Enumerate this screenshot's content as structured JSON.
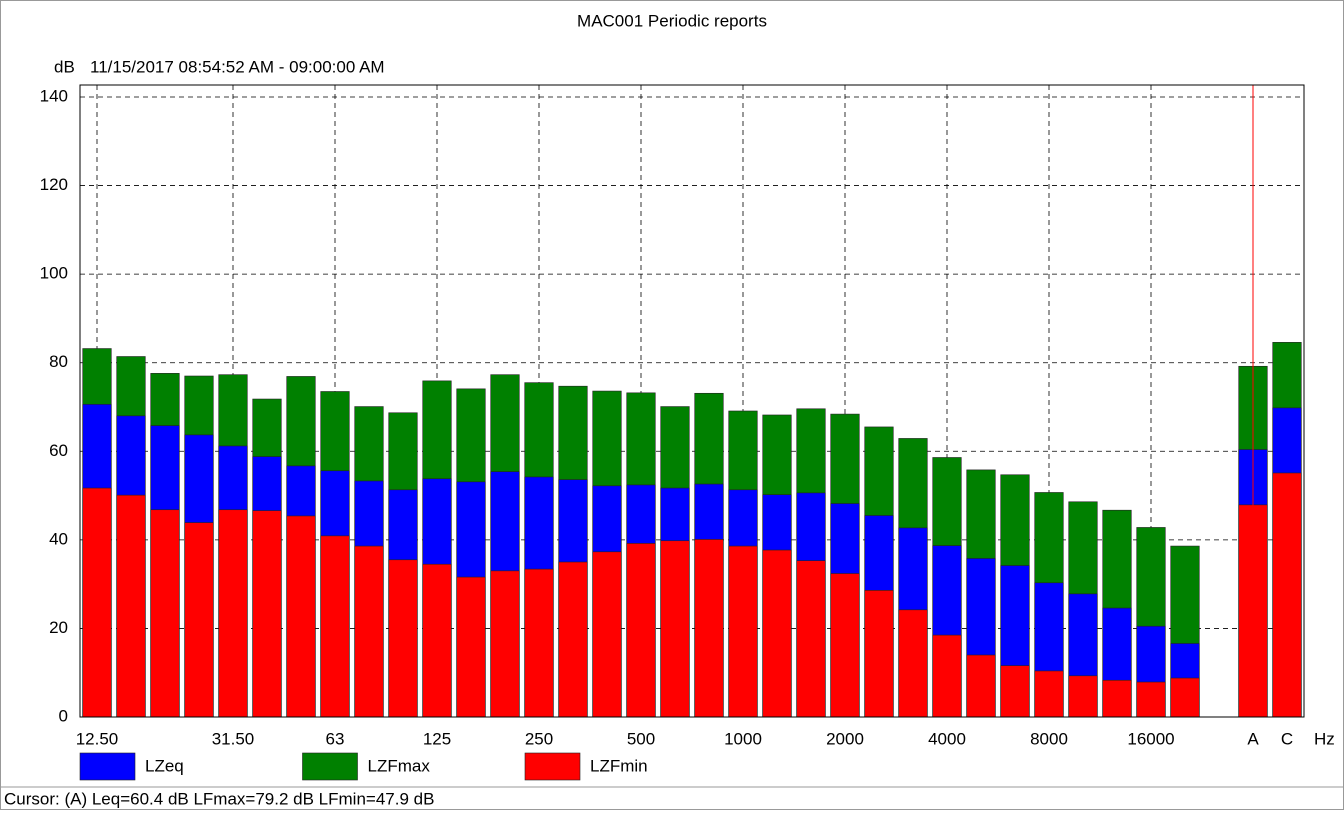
{
  "chart_data": {
    "type": "bar",
    "title": "MAC001 Periodic reports",
    "subtitle": "11/15/2017 08:54:52 AM - 09:00:00 AM",
    "y_label": "dB",
    "x_label": "Hz",
    "categories": [
      "12.50",
      null,
      null,
      null,
      "31.50",
      null,
      null,
      "63",
      null,
      null,
      "125",
      null,
      null,
      "250",
      null,
      null,
      "500",
      null,
      null,
      "1000",
      null,
      null,
      "2000",
      null,
      null,
      "4000",
      null,
      null,
      "8000",
      null,
      null,
      "16000",
      null,
      null,
      "A",
      "C"
    ],
    "series": [
      {
        "name": "LZFmax",
        "color": "#008000",
        "values": [
          83.2,
          81.4,
          77.6,
          77.0,
          77.3,
          71.8,
          76.9,
          73.5,
          70.1,
          68.7,
          75.9,
          74.1,
          77.3,
          75.5,
          74.7,
          73.6,
          73.2,
          70.1,
          73.1,
          69.1,
          68.2,
          69.6,
          68.4,
          65.5,
          62.9,
          58.6,
          55.8,
          54.7,
          50.7,
          48.6,
          46.7,
          42.8,
          38.6,
          null,
          79.2,
          84.6
        ]
      },
      {
        "name": "LZeq",
        "color": "#0000ff",
        "values": [
          70.6,
          68.0,
          65.8,
          63.7,
          61.2,
          58.8,
          56.7,
          55.6,
          53.3,
          51.3,
          53.8,
          53.1,
          55.4,
          54.2,
          53.6,
          52.2,
          52.4,
          51.7,
          52.6,
          51.3,
          50.2,
          50.6,
          48.2,
          45.5,
          42.7,
          38.7,
          35.8,
          34.2,
          30.3,
          27.8,
          24.6,
          20.5,
          16.6,
          null,
          60.4,
          69.8
        ]
      },
      {
        "name": "LZFmin",
        "color": "#ff0000",
        "values": [
          51.7,
          50.1,
          46.8,
          43.9,
          46.8,
          46.6,
          45.4,
          40.9,
          38.6,
          35.5,
          34.5,
          31.6,
          33.0,
          33.4,
          35.0,
          37.3,
          39.2,
          39.8,
          40.1,
          38.6,
          37.7,
          35.3,
          32.4,
          28.6,
          24.2,
          18.5,
          14.0,
          11.6,
          10.4,
          9.3,
          8.3,
          7.9,
          8.8,
          null,
          47.9,
          55.1
        ]
      }
    ],
    "legend_order": [
      1,
      0,
      2
    ],
    "ylim": [
      0,
      140
    ],
    "yticks": [
      0,
      20,
      40,
      60,
      80,
      100,
      120,
      140
    ],
    "grid": true,
    "cursor_text": "Cursor: (A)  Leq=60.4 dB  LFmax=79.2 dB  LFmin=47.9 dB"
  }
}
